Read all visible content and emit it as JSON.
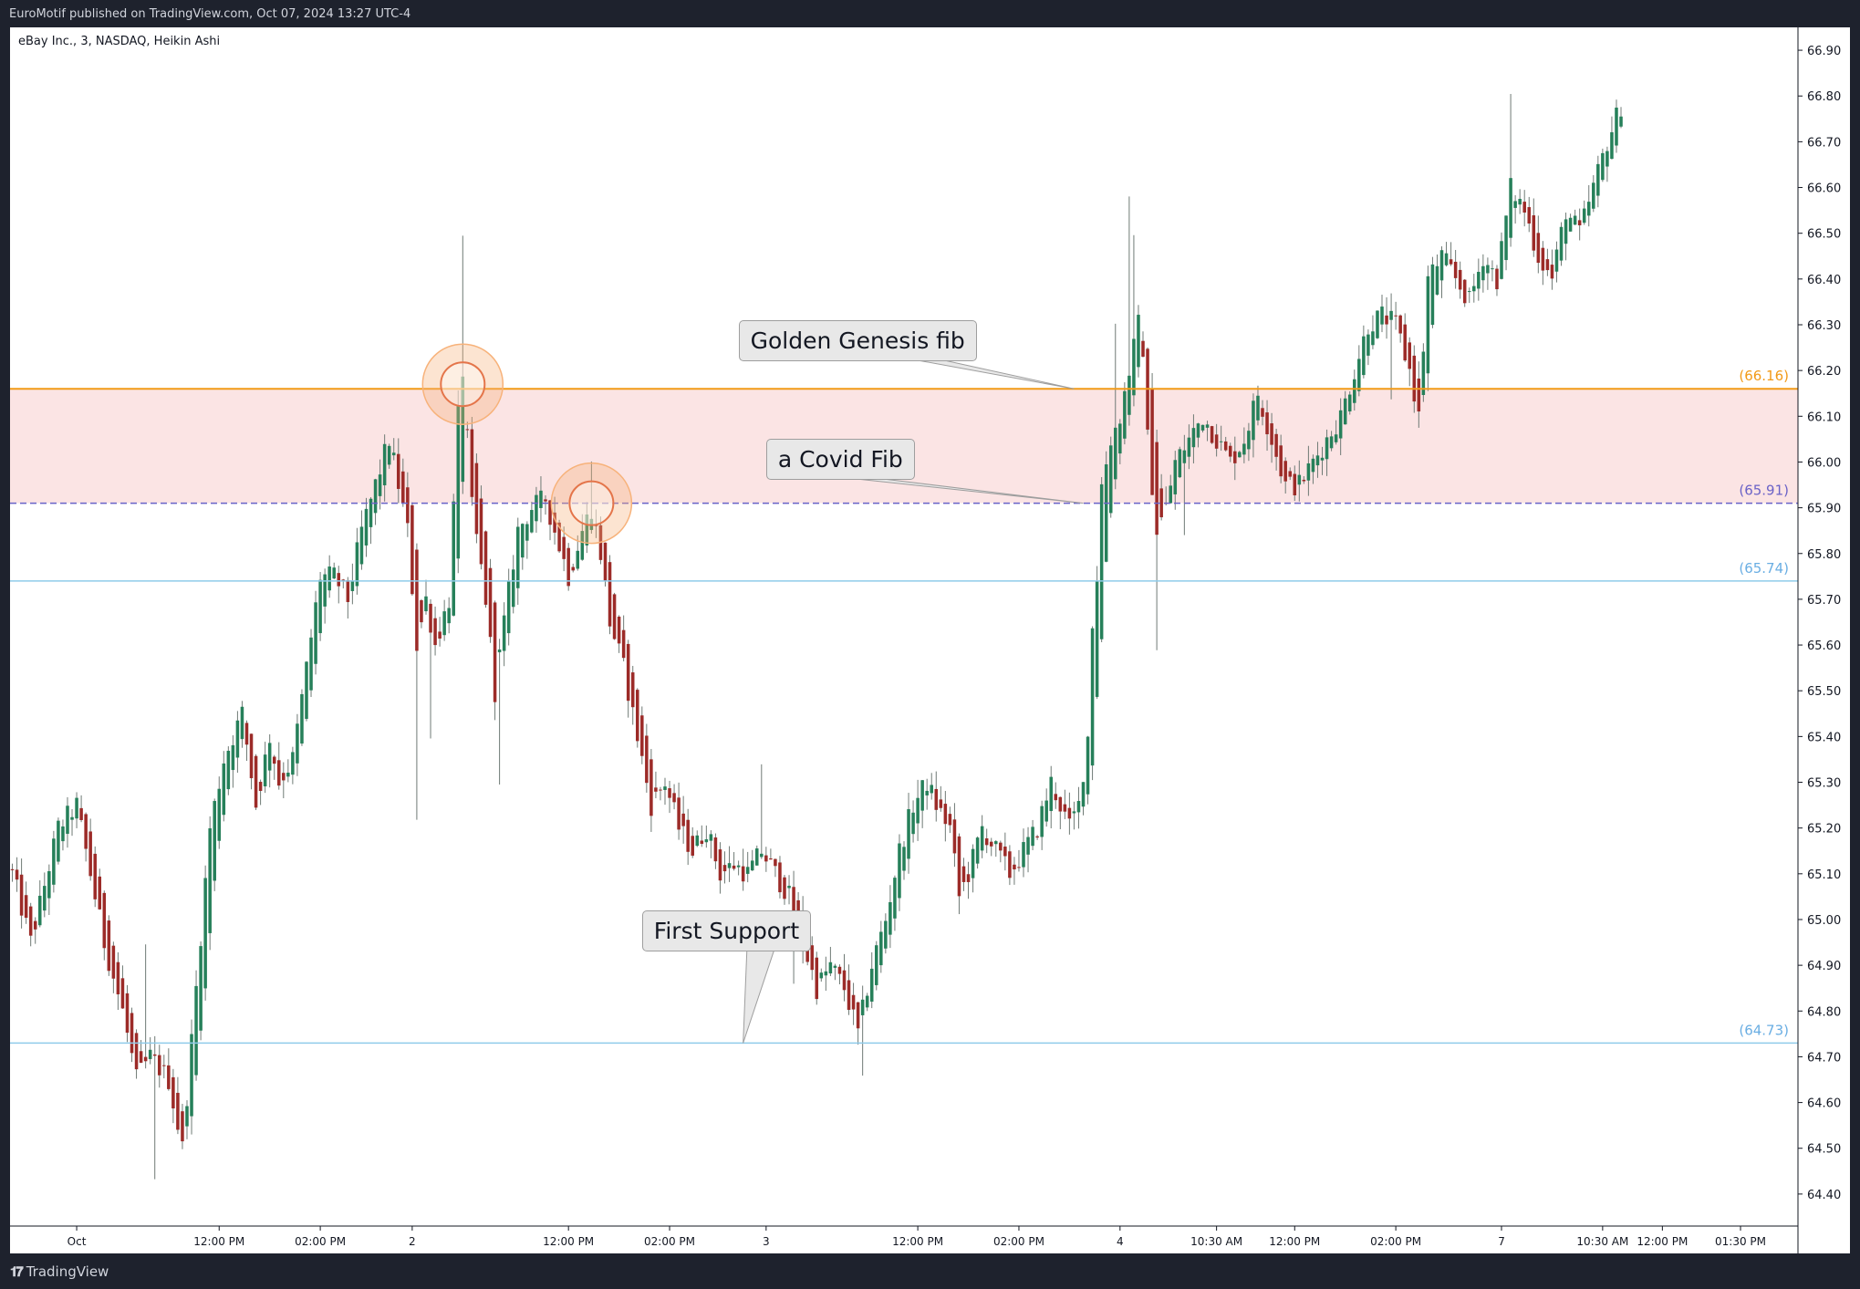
{
  "header": {
    "published": "EuroMotif published on TradingView.com, Oct 07, 2024 13:27 UTC-4"
  },
  "chart_meta": {
    "symbol_label": "eBay Inc., 3, NASDAQ, Heikin Ashi"
  },
  "footer": {
    "brand": "TradingView",
    "logo_glyph": "𝟏𝟕"
  },
  "colors": {
    "up": "#26805a",
    "down": "#9c2b28",
    "wick": "#6f7a75",
    "gold": "#f29a17",
    "blue_line": "#8fcbea",
    "blue_label": "#6aaee3",
    "covid_line": "#6a62c7",
    "zone": "#fbe4e4",
    "ring": "#f7b27a",
    "grid": "#e0e3eb"
  },
  "chart_data": {
    "type": "candlestick",
    "style": "Heikin Ashi",
    "ylim": [
      64.33,
      66.95
    ],
    "y_ticks": [
      "66.90",
      "66.80",
      "66.70",
      "66.60",
      "66.50",
      "66.40",
      "66.30",
      "66.20",
      "66.10",
      "66.00",
      "65.90",
      "65.80",
      "65.70",
      "65.60",
      "65.50",
      "65.40",
      "65.30",
      "65.20",
      "65.10",
      "65.00",
      "64.90",
      "64.80",
      "64.70",
      "64.60",
      "64.50",
      "64.40"
    ],
    "x_ticks": [
      {
        "label": "Oct",
        "bar": 14
      },
      {
        "label": "12:00 PM",
        "bar": 45
      },
      {
        "label": "02:00 PM",
        "bar": 67
      },
      {
        "label": "2",
        "bar": 87
      },
      {
        "label": "12:00 PM",
        "bar": 121
      },
      {
        "label": "02:00 PM",
        "bar": 143
      },
      {
        "label": "3",
        "bar": 164
      },
      {
        "label": "12:00 PM",
        "bar": 197
      },
      {
        "label": "02:00 PM",
        "bar": 219
      },
      {
        "label": "4",
        "bar": 241
      },
      {
        "label": "10:30 AM",
        "bar": 262
      },
      {
        "label": "12:00 PM",
        "bar": 279
      },
      {
        "label": "02:00 PM",
        "bar": 301
      },
      {
        "label": "7",
        "bar": 324
      },
      {
        "label": "10:30 AM",
        "bar": 346
      },
      {
        "label": "12:00 PM",
        "bar": 359
      },
      {
        "label": "01:30 PM",
        "bar": 376
      }
    ],
    "bar_count": 389,
    "anchors": [
      [
        0,
        65.1
      ],
      [
        4,
        64.95
      ],
      [
        10,
        65.2
      ],
      [
        14,
        65.25
      ],
      [
        17,
        65.1
      ],
      [
        20,
        64.95
      ],
      [
        24,
        64.8
      ],
      [
        27,
        64.65
      ],
      [
        30,
        64.7
      ],
      [
        34,
        64.65
      ],
      [
        37,
        64.5
      ],
      [
        40,
        64.85
      ],
      [
        43,
        65.2
      ],
      [
        46,
        65.35
      ],
      [
        50,
        65.45
      ],
      [
        53,
        65.25
      ],
      [
        56,
        65.4
      ],
      [
        58,
        65.3
      ],
      [
        61,
        65.35
      ],
      [
        64,
        65.55
      ],
      [
        67,
        65.75
      ],
      [
        70,
        65.75
      ],
      [
        73,
        65.7
      ],
      [
        76,
        65.85
      ],
      [
        79,
        65.95
      ],
      [
        82,
        66.05
      ],
      [
        84,
        65.95
      ],
      [
        86,
        65.85
      ],
      [
        88,
        65.6
      ],
      [
        90,
        65.7
      ],
      [
        92,
        65.6
      ],
      [
        95,
        65.7
      ],
      [
        97,
        66.1
      ],
      [
        98,
        66.2
      ],
      [
        100,
        65.9
      ],
      [
        103,
        65.7
      ],
      [
        105,
        65.5
      ],
      [
        107,
        65.65
      ],
      [
        110,
        65.85
      ],
      [
        113,
        65.9
      ],
      [
        116,
        65.92
      ],
      [
        118,
        65.85
      ],
      [
        121,
        65.75
      ],
      [
        124,
        65.85
      ],
      [
        126,
        65.9
      ],
      [
        128,
        65.8
      ],
      [
        130,
        65.65
      ],
      [
        133,
        65.55
      ],
      [
        136,
        65.4
      ],
      [
        139,
        65.25
      ],
      [
        142,
        65.3
      ],
      [
        145,
        65.2
      ],
      [
        148,
        65.15
      ],
      [
        151,
        65.2
      ],
      [
        154,
        65.1
      ],
      [
        157,
        65.12
      ],
      [
        160,
        65.1
      ],
      [
        163,
        65.15
      ],
      [
        166,
        65.1
      ],
      [
        169,
        65.05
      ],
      [
        172,
        64.95
      ],
      [
        175,
        64.85
      ],
      [
        178,
        64.9
      ],
      [
        181,
        64.85
      ],
      [
        184,
        64.75
      ],
      [
        187,
        64.9
      ],
      [
        190,
        65.0
      ],
      [
        193,
        65.15
      ],
      [
        196,
        65.25
      ],
      [
        199,
        65.3
      ],
      [
        201,
        65.25
      ],
      [
        204,
        65.2
      ],
      [
        206,
        65.05
      ],
      [
        208,
        65.1
      ],
      [
        211,
        65.2
      ],
      [
        214,
        65.15
      ],
      [
        217,
        65.1
      ],
      [
        220,
        65.15
      ],
      [
        223,
        65.2
      ],
      [
        226,
        65.3
      ],
      [
        228,
        65.25
      ],
      [
        230,
        65.2
      ],
      [
        232,
        65.25
      ],
      [
        234,
        65.4
      ],
      [
        235,
        65.65
      ],
      [
        236,
        65.75
      ],
      [
        237,
        65.95
      ],
      [
        239,
        66.05
      ],
      [
        241,
        66.1
      ],
      [
        243,
        66.2
      ],
      [
        245,
        66.3
      ],
      [
        246,
        66.25
      ],
      [
        247,
        66.05
      ],
      [
        249,
        65.85
      ],
      [
        251,
        65.9
      ],
      [
        253,
        66.0
      ],
      [
        256,
        66.05
      ],
      [
        259,
        66.1
      ],
      [
        262,
        66.05
      ],
      [
        265,
        66.0
      ],
      [
        268,
        66.05
      ],
      [
        271,
        66.15
      ],
      [
        274,
        66.05
      ],
      [
        277,
        65.95
      ],
      [
        280,
        65.95
      ],
      [
        283,
        66.0
      ],
      [
        286,
        66.05
      ],
      [
        289,
        66.1
      ],
      [
        292,
        66.2
      ],
      [
        295,
        66.3
      ],
      [
        298,
        66.32
      ],
      [
        301,
        66.3
      ],
      [
        304,
        66.2
      ],
      [
        306,
        66.1
      ],
      [
        308,
        66.4
      ],
      [
        311,
        66.45
      ],
      [
        314,
        66.4
      ],
      [
        317,
        66.35
      ],
      [
        320,
        66.45
      ],
      [
        323,
        66.4
      ],
      [
        326,
        66.6
      ],
      [
        329,
        66.55
      ],
      [
        332,
        66.45
      ],
      [
        335,
        66.4
      ],
      [
        338,
        66.55
      ],
      [
        341,
        66.5
      ],
      [
        344,
        66.6
      ],
      [
        347,
        66.7
      ],
      [
        350,
        66.78
      ]
    ],
    "levels": [
      {
        "price": 66.16,
        "label": "(66.16)",
        "color_key": "gold"
      },
      {
        "price": 65.91,
        "label": "(65.91)",
        "color_key": "covid_line"
      },
      {
        "price": 65.74,
        "label": "(65.74)",
        "color_key": "blue_label"
      },
      {
        "price": 64.73,
        "label": "(64.73)",
        "color_key": "blue_label"
      }
    ],
    "zone": {
      "from": 65.91,
      "to": 66.16
    },
    "annotations": [
      {
        "text": "Golden Genesis fib",
        "bar": 158,
        "price": 66.31,
        "target_bar": 231,
        "target_price": 66.16
      },
      {
        "text": "a Covid Fib",
        "bar": 164,
        "price": 66.05,
        "target_bar": 233,
        "target_price": 65.91
      },
      {
        "text": "First Support",
        "bar": 137,
        "price": 65.02,
        "target_bar": 159,
        "target_price": 64.73
      }
    ],
    "circles": [
      {
        "bar": 98,
        "price": 66.17
      },
      {
        "bar": 126,
        "price": 65.91
      }
    ]
  }
}
